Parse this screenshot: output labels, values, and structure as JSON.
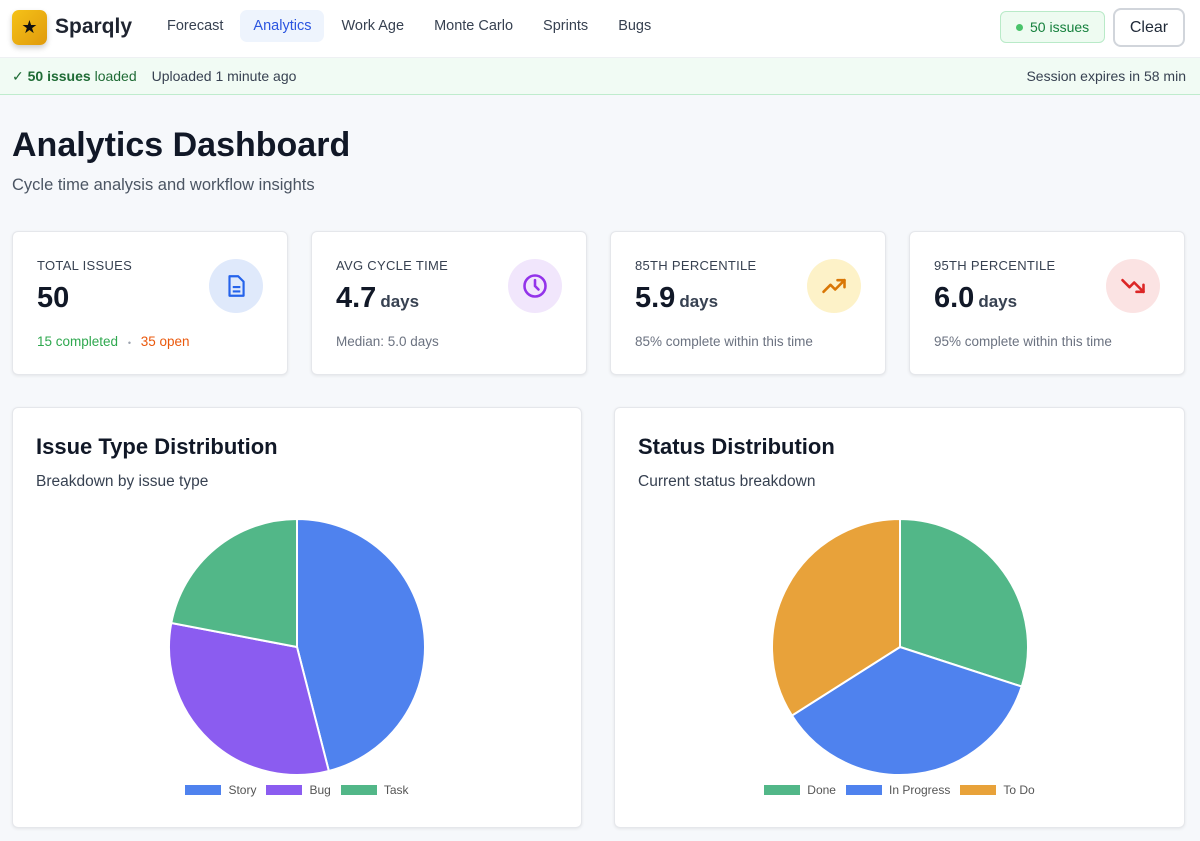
{
  "app": {
    "name": "Sparqly",
    "nav": [
      "Forecast",
      "Analytics",
      "Work Age",
      "Monte Carlo",
      "Sprints",
      "Bugs"
    ],
    "active": "Analytics",
    "issues_badge": "50 issues",
    "clear": "Clear"
  },
  "banner": {
    "check": "✓",
    "count": "50 issues",
    "loaded": "loaded",
    "uploaded": "Uploaded 1 minute ago",
    "session": "Session expires in 58 min"
  },
  "page": {
    "title": "Analytics Dashboard",
    "subtitle": "Cycle time analysis and workflow insights"
  },
  "cards": [
    {
      "label": "TOTAL ISSUES",
      "value": "50",
      "completed": "15 completed",
      "sep": "•",
      "open": "35 open",
      "icon": "document-icon",
      "color": "#2563eb",
      "bg": "#dfe9fb"
    },
    {
      "label": "AVG CYCLE TIME",
      "value": "4.7",
      "unit": "days",
      "foot": "Median: 5.0 days",
      "icon": "clock-icon",
      "color": "#9333ea",
      "bg": "#f1e6fc"
    },
    {
      "label": "85TH PERCENTILE",
      "value": "5.9",
      "unit": "days",
      "foot": "85% complete within this time",
      "icon": "trending-up-icon",
      "color": "#d97706",
      "bg": "#fdf2c8"
    },
    {
      "label": "95TH PERCENTILE",
      "value": "6.0",
      "unit": "days",
      "foot": "95% complete within this time",
      "icon": "trending-down-icon",
      "color": "#dc2626",
      "bg": "#fbe3e3"
    }
  ],
  "chart_data": [
    {
      "type": "pie",
      "title": "Issue Type Distribution",
      "subtitle": "Breakdown by issue type",
      "categories": [
        "Story",
        "Bug",
        "Task"
      ],
      "values": [
        23,
        16,
        11
      ],
      "colors": [
        "#4f82ee",
        "#8b5cf0",
        "#52b788"
      ]
    },
    {
      "type": "pie",
      "title": "Status Distribution",
      "subtitle": "Current status breakdown",
      "categories": [
        "Done",
        "In Progress",
        "To Do"
      ],
      "values": [
        15,
        18,
        17
      ],
      "colors": [
        "#52b788",
        "#4f82ee",
        "#e8a23a"
      ]
    }
  ]
}
